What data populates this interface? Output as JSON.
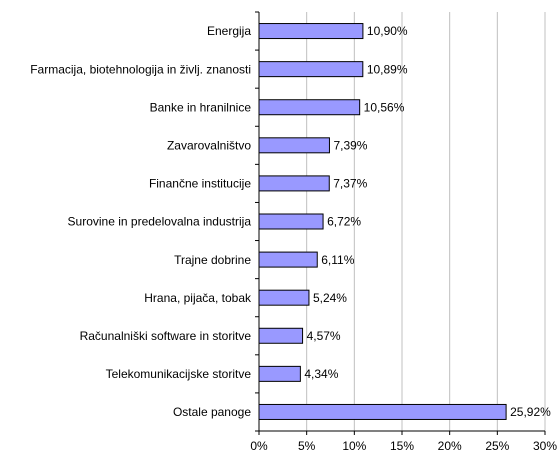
{
  "chart_data": {
    "type": "bar",
    "orientation": "horizontal",
    "categories": [
      "Energija",
      "Farmacija, biotehnologija in življ. znanosti",
      "Banke in hranilnice",
      "Zavarovalništvo",
      "Finančne institucije",
      "Surovine in predelovalna industrija",
      "Trajne dobrine",
      "Hrana, pijača, tobak",
      "Računalniški software in storitve",
      "Telekomunikacijske storitve",
      "Ostale panoge"
    ],
    "values": [
      10.9,
      10.89,
      10.56,
      7.39,
      7.37,
      6.72,
      6.11,
      5.24,
      4.57,
      4.34,
      25.92
    ],
    "value_labels": [
      "10,90%",
      "10,89%",
      "10,56%",
      "7,39%",
      "7,37%",
      "6,72%",
      "6,11%",
      "5,24%",
      "4,57%",
      "4,34%",
      "25,92%"
    ],
    "color": "#9999ff",
    "xlim": [
      0,
      30
    ],
    "xticks": [
      {
        "value": 0,
        "label": "0%"
      },
      {
        "value": 5,
        "label": "5%"
      },
      {
        "value": 10,
        "label": "10%"
      },
      {
        "value": 15,
        "label": "15%"
      },
      {
        "value": 20,
        "label": "20%"
      },
      {
        "value": 25,
        "label": "25%"
      },
      {
        "value": 30,
        "label": "30%"
      }
    ],
    "grid": true
  }
}
